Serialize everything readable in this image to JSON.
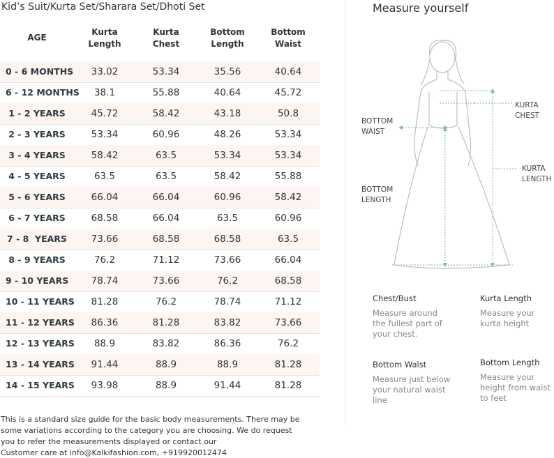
{
  "table": {
    "title": "Kid’s Suit/Kurta Set/Sharara Set/Dhoti Set",
    "header": [
      "AGE",
      "Kurta\nLength",
      "Kurta\nChest",
      "Bottom\nLength",
      "Bottom\nWaist"
    ],
    "rows": [
      [
        "0 - 6 MONTHS",
        "33.02",
        "53.34",
        "35.56",
        "40.64"
      ],
      [
        "6 - 12 MONTHS",
        "38.1",
        "55.88",
        "40.64",
        "45.72"
      ],
      [
        "1 - 2 YEARS",
        "45.72",
        "58.42",
        "43.18",
        "50.8"
      ],
      [
        "2 - 3 YEARS",
        "53.34",
        "60.96",
        "48.26",
        "53.34"
      ],
      [
        "3 - 4 YEARS",
        "58.42",
        "63.5",
        "53.34",
        "53.34"
      ],
      [
        "4 - 5 YEARS",
        "63.5",
        "63.5",
        "58.42",
        "55.88"
      ],
      [
        "5 - 6 YEARS",
        "66.04",
        "66.04",
        "60.96",
        "58.42"
      ],
      [
        "6 - 7 YEARS",
        "68.58",
        "66.04",
        "63.5",
        "60.96"
      ],
      [
        "7 - 8  YEARS",
        "73.66",
        "68.58",
        "68.58",
        "63.5"
      ],
      [
        "8 - 9 YEARS",
        "76.2",
        "71.12",
        "73.66",
        "66.04"
      ],
      [
        "9 - 10 YEARS",
        "78.74",
        "73.66",
        "76.2",
        "68.58"
      ],
      [
        "10 - 11 YEARS",
        "81.28",
        "76.2",
        "78.74",
        "71.12"
      ],
      [
        "11 - 12 YEARS",
        "86.36",
        "81.28",
        "83.82",
        "73.66"
      ],
      [
        "12 - 13 YEARS",
        "88.9",
        "83.82",
        "86.36",
        "76.2"
      ],
      [
        "13 - 14 YEARS",
        "91.44",
        "88.9",
        "88.9",
        "81.28"
      ],
      [
        "14 - 15 YEARS",
        "93.98",
        "88.9",
        "91.44",
        "81.28"
      ]
    ]
  },
  "footer": [
    "This is a standard size guide for the basic body measurements. There may be",
    "some variations according to the category you are choosing. We do request",
    "you to refer the measurements displayed or contact our",
    "Customer care at info@Kalkifashion.com, +919920012474"
  ],
  "measure": {
    "title": "Measure yourself",
    "labels": {
      "kurta_chest": [
        "KURTA",
        "CHEST"
      ],
      "bottom_waist": [
        "BOTTOM",
        "WAIST"
      ],
      "kurta_length": [
        "KURTA",
        "LENGTH"
      ],
      "bottom_length": [
        "BOTTOM",
        "LENGTH"
      ]
    },
    "tips": [
      {
        "title": "Chest/Bust",
        "lines": [
          "Measure around",
          "the fullest part of",
          "your chest."
        ]
      },
      {
        "title": "Kurta Length",
        "lines": [
          "Measure your",
          "kurta height"
        ]
      },
      {
        "title": "Bottom Waist",
        "lines": [
          "Measure just below",
          "your natural waist",
          "line"
        ]
      },
      {
        "title": "Bottom Length",
        "lines": [
          "Measure your",
          "height from waist",
          "to feet"
        ]
      }
    ]
  }
}
